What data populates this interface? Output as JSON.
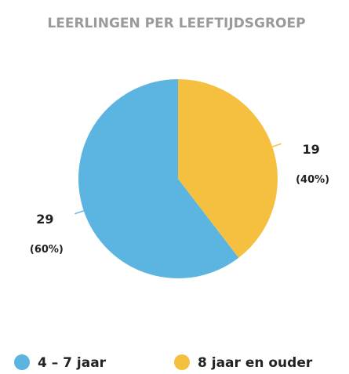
{
  "chart_data": {
    "type": "pie",
    "title": "LEERLINGEN PER LEEFTIJDSGROEP",
    "categories": [
      "4 – 7 jaar",
      "8 jaar en ouder"
    ],
    "values": [
      29,
      19
    ],
    "percent_labels": [
      "(60%)",
      "(40%)"
    ],
    "colors": [
      "#5cb5e1",
      "#f5c03f"
    ]
  }
}
